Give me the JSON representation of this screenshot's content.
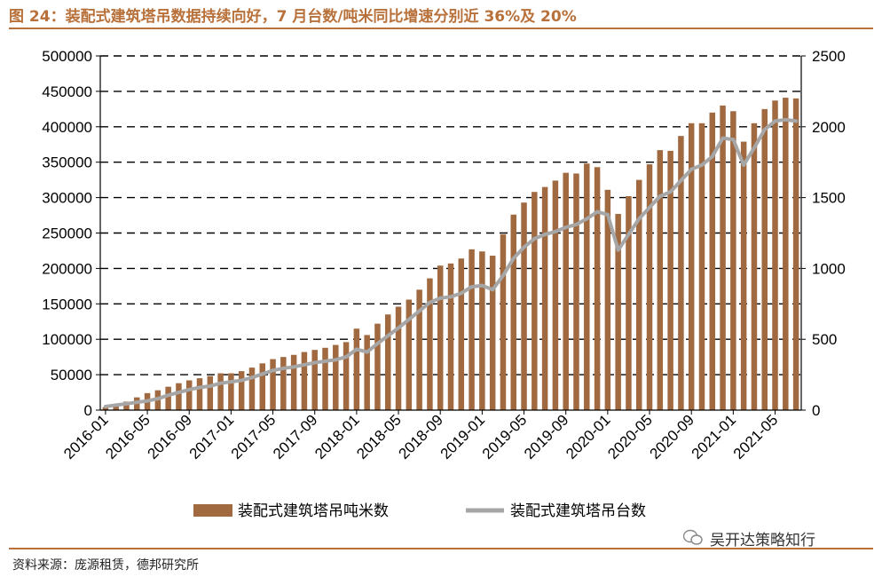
{
  "title": "图 24：装配式建筑塔吊数据持续向好，7 月台数/吨米同比增速分别近 36%及 20%",
  "source": "资料来源：庞源租赁，德邦研究所",
  "watermark": "吴开达策略知行",
  "colors": {
    "accent": "#B8713A",
    "bar": "#A0693F",
    "line": "#A6A6A6"
  },
  "chart_data": {
    "type": "bar",
    "title": "",
    "categories": [
      "2016-01",
      "2016-02",
      "2016-03",
      "2016-04",
      "2016-05",
      "2016-06",
      "2016-07",
      "2016-08",
      "2016-09",
      "2016-10",
      "2016-11",
      "2016-12",
      "2017-01",
      "2017-02",
      "2017-03",
      "2017-04",
      "2017-05",
      "2017-06",
      "2017-07",
      "2017-08",
      "2017-09",
      "2017-10",
      "2017-11",
      "2017-12",
      "2018-01",
      "2018-02",
      "2018-03",
      "2018-04",
      "2018-05",
      "2018-06",
      "2018-07",
      "2018-08",
      "2018-09",
      "2018-10",
      "2018-11",
      "2018-12",
      "2019-01",
      "2019-02",
      "2019-03",
      "2019-04",
      "2019-05",
      "2019-06",
      "2019-07",
      "2019-08",
      "2019-09",
      "2019-10",
      "2019-11",
      "2019-12",
      "2020-01",
      "2020-02",
      "2020-03",
      "2020-04",
      "2020-05",
      "2020-06",
      "2020-07",
      "2020-08",
      "2020-09",
      "2020-10",
      "2020-11",
      "2020-12",
      "2021-01",
      "2021-02",
      "2021-03",
      "2021-04",
      "2021-05",
      "2021-06",
      "2021-07"
    ],
    "x_tick_labels": [
      "2016-01",
      "2016-05",
      "2016-09",
      "2017-01",
      "2017-05",
      "2017-09",
      "2018-01",
      "2018-05",
      "2018-09",
      "2019-01",
      "2019-05",
      "2019-09",
      "2020-01",
      "2020-05",
      "2020-09",
      "2021-01",
      "2021-05"
    ],
    "y_left": {
      "min": 0,
      "max": 500000,
      "ticks": [
        "0",
        "50000",
        "100000",
        "150000",
        "200000",
        "250000",
        "300000",
        "350000",
        "400000",
        "450000",
        "500000"
      ]
    },
    "y_right": {
      "min": 0,
      "max": 2500,
      "ticks": [
        "0",
        "500",
        "1000",
        "1500",
        "2000",
        "2500"
      ]
    },
    "grid": true,
    "legend_position": "bottom",
    "series": [
      {
        "name": "装配式建筑塔吊吨米数",
        "type": "bar",
        "axis": "left",
        "values": [
          4000,
          8000,
          12000,
          18000,
          24000,
          28000,
          33000,
          38000,
          42000,
          45000,
          48000,
          52000,
          52000,
          55000,
          60000,
          66000,
          72000,
          75000,
          78000,
          82000,
          85000,
          88000,
          92000,
          96000,
          115000,
          106000,
          122000,
          135000,
          146000,
          156000,
          170000,
          186000,
          204000,
          207000,
          214000,
          227000,
          224000,
          218000,
          248000,
          276000,
          293000,
          308000,
          315000,
          324000,
          335000,
          334000,
          348000,
          343000,
          311000,
          277000,
          302000,
          325000,
          347000,
          367000,
          366000,
          387000,
          405000,
          405000,
          420000,
          430000,
          422000,
          379000,
          405000,
          425000,
          437000,
          441000,
          440000
        ]
      },
      {
        "name": "装配式建筑塔吊台数",
        "type": "line",
        "axis": "right",
        "values": [
          25,
          35,
          45,
          55,
          65,
          80,
          105,
          125,
          145,
          160,
          170,
          190,
          200,
          210,
          230,
          255,
          280,
          295,
          305,
          320,
          335,
          345,
          355,
          375,
          430,
          410,
          470,
          525,
          580,
          640,
          700,
          760,
          790,
          800,
          825,
          870,
          880,
          850,
          950,
          1070,
          1150,
          1210,
          1240,
          1260,
          1290,
          1310,
          1350,
          1400,
          1380,
          1130,
          1240,
          1350,
          1430,
          1510,
          1540,
          1620,
          1700,
          1730,
          1790,
          1920,
          1910,
          1730,
          1850,
          1980,
          2040,
          2050,
          2040
        ]
      }
    ]
  }
}
